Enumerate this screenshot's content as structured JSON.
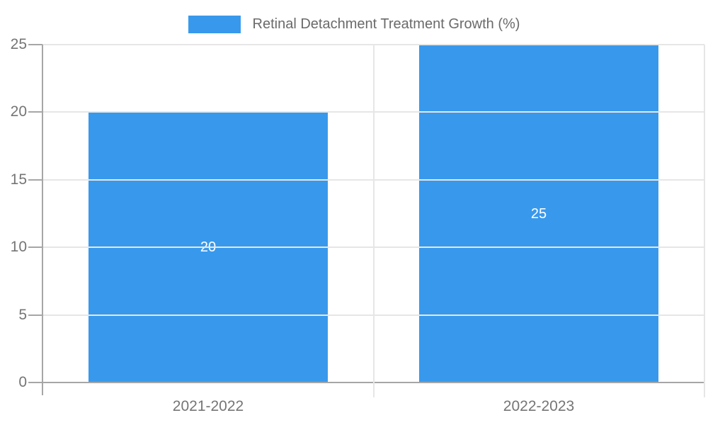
{
  "chart_data": {
    "type": "bar",
    "title": "Retinal Detachment Treatment Growth (%)",
    "categories": [
      "2021-2022",
      "2022-2023"
    ],
    "series": [
      {
        "name": "Retinal Detachment Treatment Growth (%)",
        "values": [
          20,
          25
        ]
      }
    ],
    "bar_value_labels": [
      "20",
      "25"
    ],
    "yticks": [
      0,
      5,
      10,
      15,
      20,
      25
    ],
    "ylim": [
      0,
      25
    ],
    "xlabel": "",
    "ylabel": "",
    "grid": true,
    "legend_position": "top-center",
    "colors": {
      "bar": "#3899EC",
      "bar_value_text": "#FFFFFF",
      "axis_text": "#757575",
      "legend_text": "#6A6A6A",
      "gridline": "#E6E6E6",
      "axis_line": "#A6A6A6",
      "background": "#FFFFFF"
    }
  }
}
